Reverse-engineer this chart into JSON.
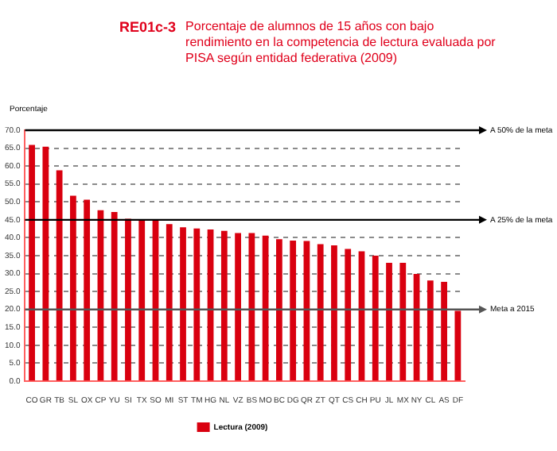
{
  "chart_data": {
    "type": "bar",
    "title": "RE01c-3",
    "subtitle": "Porcentaje de alumnos de 15 años con bajo rendimiento en la competencia de lectura evaluada por PISA según entidad federativa (2009)",
    "ylabel": "Porcentaje",
    "categories": [
      "CO",
      "GR",
      "TB",
      "SL",
      "OX",
      "CP",
      "YU",
      "SI",
      "TX",
      "SO",
      "MI",
      "ST",
      "TM",
      "HG",
      "NL",
      "VZ",
      "BS",
      "MO",
      "BC",
      "DG",
      "QR",
      "ZT",
      "QT",
      "CS",
      "CH",
      "PU",
      "JL",
      "MX",
      "NY",
      "CL",
      "AS",
      "DF"
    ],
    "series": [
      {
        "name": "Lectura (2009)",
        "color": "#d9000f",
        "values": [
          65.9,
          65.4,
          58.8,
          51.7,
          50.6,
          47.7,
          47.2,
          45.3,
          44.8,
          44.8,
          43.8,
          42.9,
          42.6,
          42.3,
          41.9,
          41.3,
          41.3,
          40.6,
          39.6,
          39.2,
          39.1,
          38.2,
          37.9,
          36.9,
          36.2,
          35.0,
          33.0,
          33.0,
          29.9,
          28.1,
          27.7,
          19.6
        ]
      }
    ],
    "ylim": [
      0,
      70
    ],
    "yticks": [
      {
        "value": 0,
        "label": "0.0"
      },
      {
        "value": 5,
        "label": "5.0"
      },
      {
        "value": 10,
        "label": "10.0"
      },
      {
        "value": 15,
        "label": "15.0"
      },
      {
        "value": 20,
        "label": "20.0"
      },
      {
        "value": 25,
        "label": "25.0"
      },
      {
        "value": 30,
        "label": "30.0"
      },
      {
        "value": 35,
        "label": "35.0"
      },
      {
        "value": 40,
        "label": "40.0"
      },
      {
        "value": 45,
        "label": "45.0"
      },
      {
        "value": 50,
        "label": "50.0"
      },
      {
        "value": 55,
        "label": "55.0"
      },
      {
        "value": 60,
        "label": "60.0"
      },
      {
        "value": 65,
        "label": "65.0"
      },
      {
        "value": 70,
        "label": "70.0"
      }
    ],
    "ref_lines": [
      {
        "axis": "y",
        "value": 70,
        "label": "A 50% de la meta",
        "color": "#000000"
      },
      {
        "axis": "y",
        "value": 45,
        "label": "A 25% de la meta",
        "color": "#000000"
      },
      {
        "axis": "y",
        "value": 20,
        "label": "Meta a 2015",
        "color": "#555555"
      }
    ],
    "grid": "y",
    "line_style": "dashed",
    "legend": "bottom"
  }
}
